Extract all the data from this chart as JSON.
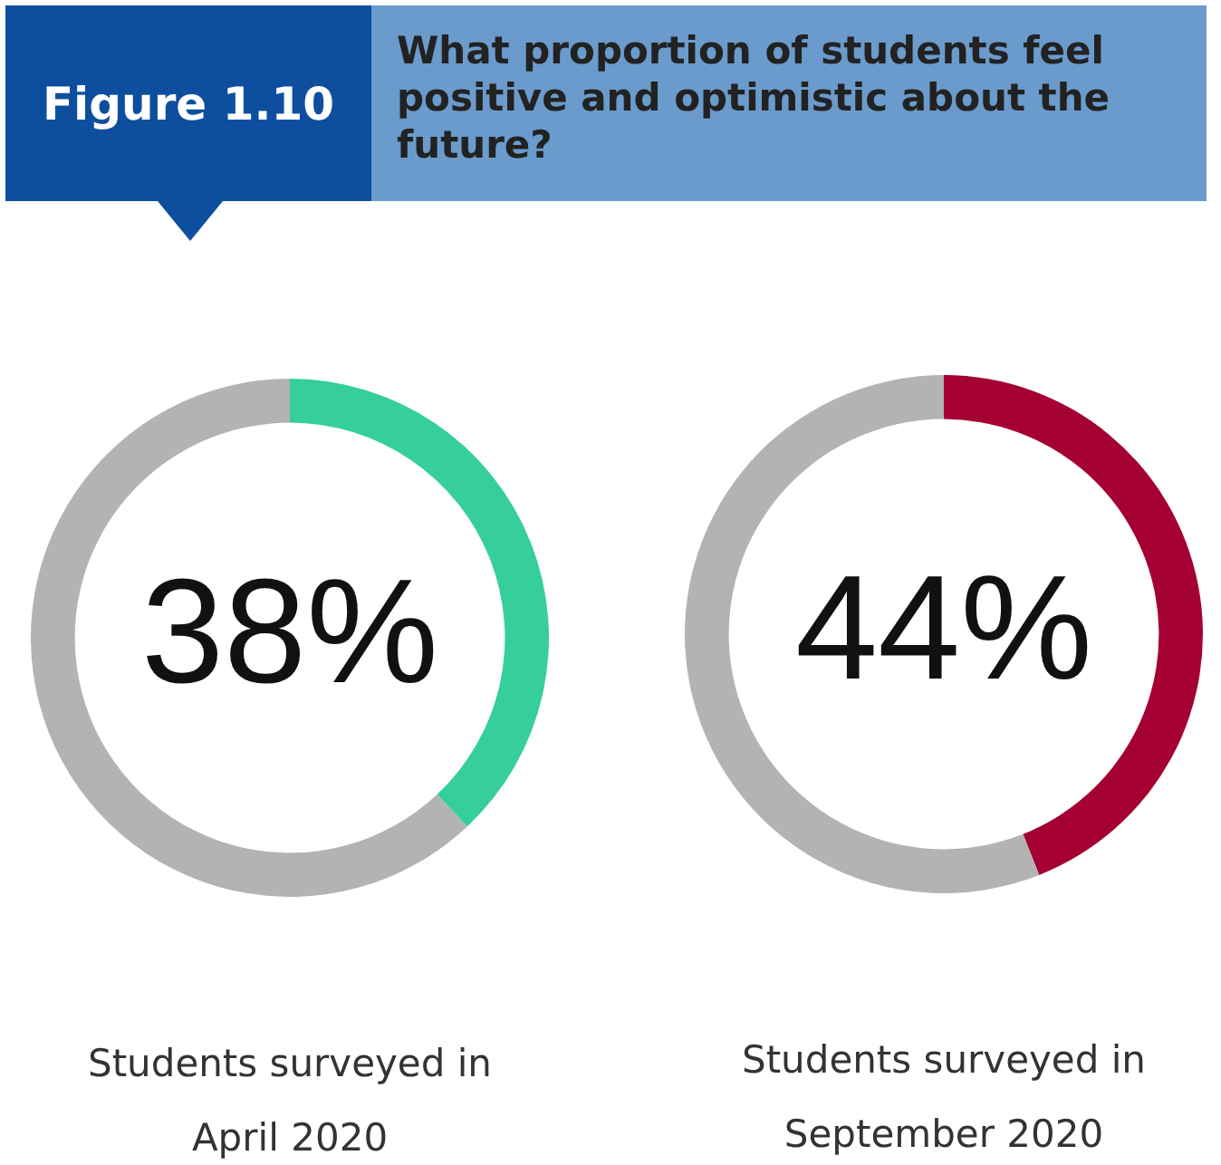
{
  "chart_data": [
    {
      "type": "donut",
      "title": "What proportion of students feel positive and optimistic about the future?",
      "annotations": [
        "Figure 1.10"
      ],
      "xlabel": "Students surveyed in April 2020",
      "categories": [
        null,
        null
      ],
      "values": [
        38,
        62
      ],
      "colors": [
        "#36cf9a",
        "#b3b3b3"
      ],
      "value_labels": [
        "38%",
        null
      ],
      "legend": false
    },
    {
      "type": "donut",
      "xlabel": "Students surveyed in September 2020",
      "categories": [
        null,
        null
      ],
      "values": [
        44,
        56
      ],
      "colors": [
        "#a50034",
        "#b3b3b3"
      ],
      "value_labels": [
        "44%",
        null
      ],
      "legend": false
    }
  ]
}
